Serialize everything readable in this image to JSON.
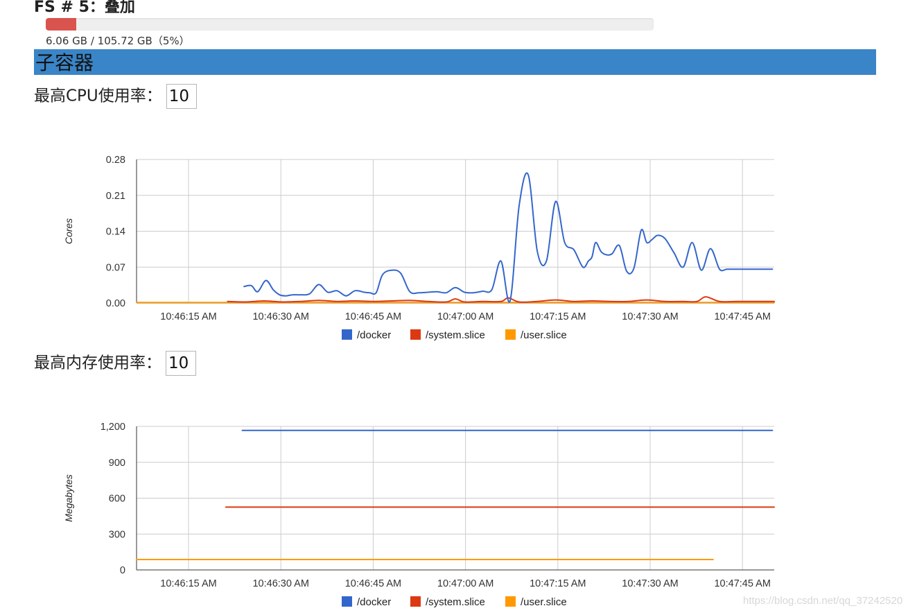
{
  "filesystem": {
    "title": "FS # 5：叠加",
    "usage_text": "6.06 GB / 105.72 GB（5%）",
    "usage_fraction": 0.05,
    "bar_color": "#d9534f"
  },
  "section": {
    "title": "子容器",
    "color": "#3a85c7"
  },
  "cpu_limit": {
    "label": "最高CPU使用率：",
    "value": "10"
  },
  "memory_limit": {
    "label": "最高内存使用率：",
    "value": "10"
  },
  "chart_data": [
    {
      "type": "line",
      "ylabel": "Cores",
      "ylim": [
        0,
        0.28
      ],
      "yticks": [
        "0.00",
        "0.07",
        "0.14",
        "0.21",
        "0.28"
      ],
      "xlim": [
        7,
        77
      ],
      "xticks": [
        "10:46:15 AM",
        "10:46:30 AM",
        "10:46:45 AM",
        "10:47:00 AM",
        "10:47:15 AM",
        "10:47:30 AM",
        "10:47:45 AM"
      ],
      "grid": true,
      "legend_position": "bottom",
      "series": [
        {
          "name": "/docker",
          "color": "#3366cc",
          "x": [
            18.8,
            19.6,
            20.3,
            21.2,
            22,
            22.7,
            23.4,
            24.1,
            25,
            26,
            27,
            28,
            29,
            30,
            31,
            32,
            32.6,
            33.3,
            34,
            35,
            36,
            37,
            38,
            39,
            40,
            41,
            42,
            43,
            44,
            45,
            46,
            47,
            48,
            49,
            50,
            51,
            52,
            53,
            54,
            55,
            56,
            56.6,
            57,
            57.4,
            58,
            58.6,
            59.2,
            60,
            60.8,
            61.6,
            62.4,
            63,
            63.6,
            64.2,
            65,
            66,
            67,
            68,
            69,
            70,
            71,
            71.8,
            72.6,
            73.4,
            74,
            74.6,
            75,
            75.5,
            76.2,
            76.8
          ],
          "values": [
            0.032,
            0.034,
            0.022,
            0.044,
            0.026,
            0.016,
            0.014,
            0.016,
            0.016,
            0.018,
            0.036,
            0.021,
            0.024,
            0.014,
            0.024,
            0.021,
            0.02,
            0.02,
            0.055,
            0.064,
            0.058,
            0.022,
            0.02,
            0.021,
            0.022,
            0.02,
            0.03,
            0.021,
            0.02,
            0.023,
            0.026,
            0.082,
            0.004,
            0.19,
            0.25,
            0.1,
            0.082,
            0.198,
            0.118,
            0.104,
            0.07,
            0.082,
            0.09,
            0.118,
            0.1,
            0.094,
            0.096,
            0.112,
            0.062,
            0.068,
            0.142,
            0.118,
            0.124,
            0.132,
            0.126,
            0.098,
            0.07,
            0.118,
            0.064,
            0.106,
            0.066,
            0.066,
            0.066,
            0.066,
            0.066,
            0.066,
            0.066,
            0.066,
            0.066,
            0.066
          ]
        },
        {
          "name": "/system.slice",
          "color": "#dc3912",
          "x": [
            17,
            19,
            21,
            23,
            25,
            27,
            29,
            31,
            33,
            35,
            37,
            39,
            41,
            42,
            43,
            45,
            47,
            47.8,
            49,
            51,
            53,
            55,
            57,
            59,
            61,
            63,
            65,
            67,
            68.5,
            69.5,
            71,
            73,
            75,
            77
          ],
          "values": [
            0.003,
            0.002,
            0.004,
            0.002,
            0.003,
            0.005,
            0.003,
            0.004,
            0.003,
            0.004,
            0.005,
            0.003,
            0.002,
            0.008,
            0.002,
            0.003,
            0.003,
            0.01,
            0.002,
            0.003,
            0.006,
            0.003,
            0.004,
            0.003,
            0.003,
            0.006,
            0.003,
            0.003,
            0.003,
            0.012,
            0.003,
            0.003,
            0.003,
            0.003
          ]
        },
        {
          "name": "/user.slice",
          "color": "#ff9900",
          "x": [
            7,
            17,
            77
          ],
          "values": [
            0.001,
            0.001,
            0.001
          ]
        }
      ]
    },
    {
      "type": "line",
      "ylabel": "Megabytes",
      "ylim": [
        0,
        1200
      ],
      "yticks": [
        "0",
        "300",
        "600",
        "900",
        "1,200"
      ],
      "xlim": [
        7,
        77
      ],
      "xticks": [
        "10:46:15 AM",
        "10:46:30 AM",
        "10:46:45 AM",
        "10:47:00 AM",
        "10:47:15 AM",
        "10:47:30 AM",
        "10:47:45 AM"
      ],
      "grid": true,
      "legend_position": "bottom",
      "series": [
        {
          "name": "/docker",
          "color": "#3366cc",
          "x": [
            18.6,
            76.8
          ],
          "values": [
            1167,
            1167
          ]
        },
        {
          "name": "/system.slice",
          "color": "#dc3912",
          "x": [
            16.8,
            77
          ],
          "values": [
            525,
            525
          ]
        },
        {
          "name": "/user.slice",
          "color": "#ff9900",
          "x": [
            7,
            70.3
          ],
          "values": [
            87,
            87
          ]
        }
      ]
    }
  ],
  "watermark": "https://blog.csdn.net/qq_37242520"
}
